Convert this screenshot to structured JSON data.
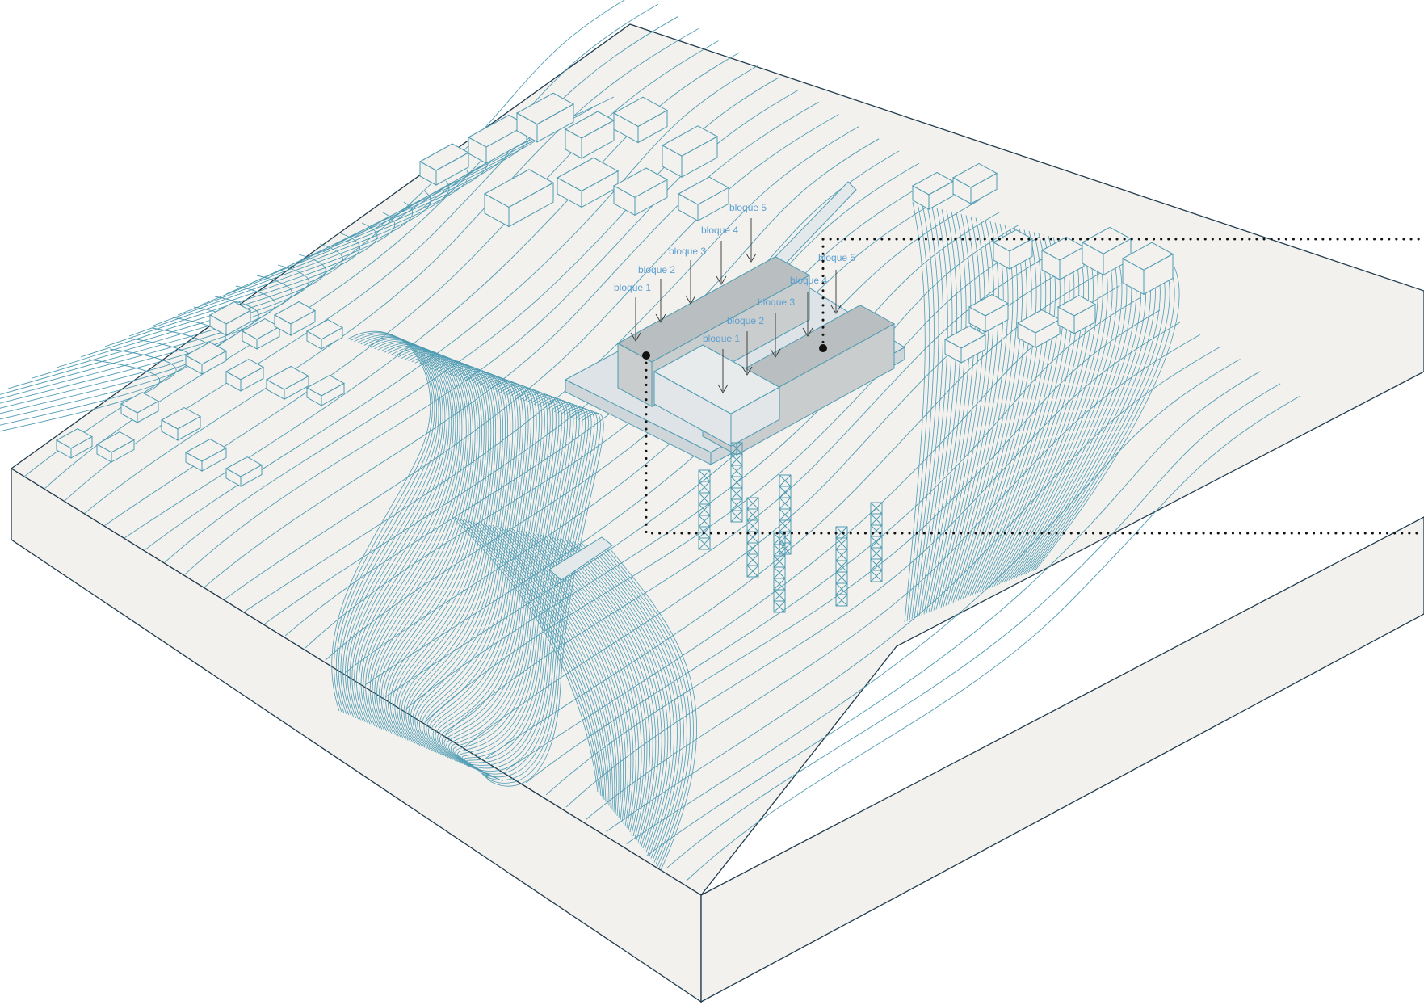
{
  "colors": {
    "background": "#ffffff",
    "ground": "#f3f1ee",
    "contour": "#4e9bb3",
    "edge": "#1f3b4d",
    "building_roof": "#b9bfc0",
    "building_side": "#c9cdce",
    "platform": "#dde3e6",
    "label": "#5b9fd1",
    "dots": "#111111"
  },
  "labels": {
    "west_wing": [
      "bloque 1",
      "bloque 2",
      "bloque 3",
      "bloque 4",
      "bloque 5"
    ],
    "east_wing": [
      "bloque 1",
      "bloque 2",
      "bloque 3",
      "bloque 4",
      "bloque 5"
    ]
  },
  "icons": {
    "block_arrows": "down-arrow-icon",
    "anchor_points": "dot-marker-icon"
  }
}
